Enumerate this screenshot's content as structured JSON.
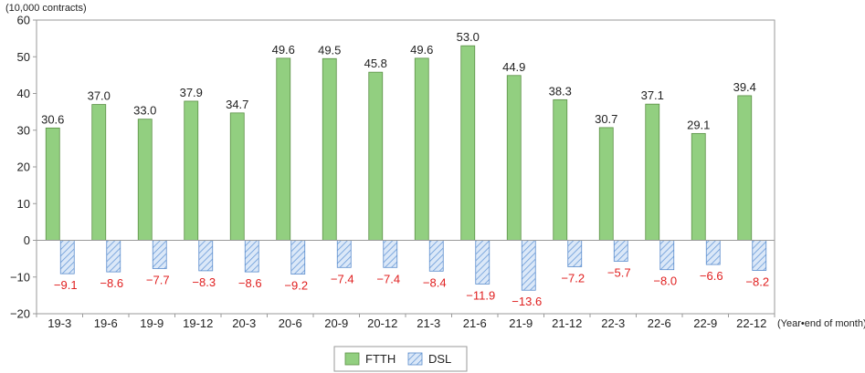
{
  "chart_data": {
    "type": "bar",
    "y_unit_label": "(10,000 contracts)",
    "x_unit_label": "(Year•end of month)",
    "categories": [
      "19-3",
      "19-6",
      "19-9",
      "19-12",
      "20-3",
      "20-6",
      "20-9",
      "20-12",
      "21-3",
      "21-6",
      "21-9",
      "21-12",
      "22-3",
      "22-6",
      "22-9",
      "22-12"
    ],
    "series": [
      {
        "name": "FTTH",
        "color": "#92cf80",
        "values": [
          30.6,
          37.0,
          33.0,
          37.9,
          34.7,
          49.6,
          49.5,
          45.8,
          49.6,
          53.0,
          44.9,
          38.3,
          30.7,
          37.1,
          29.1,
          39.4
        ]
      },
      {
        "name": "DSL",
        "color": "#a9c8ef",
        "pattern": "diagonal-hatch",
        "values": [
          -9.1,
          -8.6,
          -7.7,
          -8.3,
          -8.6,
          -9.2,
          -7.4,
          -7.4,
          -8.4,
          -11.9,
          -13.6,
          -7.2,
          -5.7,
          -8.0,
          -6.6,
          -8.2
        ]
      }
    ],
    "data_labels": {
      "FTTH": [
        "30.6",
        "37.0",
        "33.0",
        "37.9",
        "34.7",
        "49.6",
        "49.5",
        "45.8",
        "49.6",
        "53.0",
        "44.9",
        "38.3",
        "30.7",
        "37.1",
        "29.1",
        "39.4"
      ],
      "DSL": [
        "−9.1",
        "−8.6",
        "−7.7",
        "−8.3",
        "−8.6",
        "−9.2",
        "−7.4",
        "−7.4",
        "−8.4",
        "−11.9",
        "−13.6",
        "−7.2",
        "−5.7",
        "−8.0",
        "−6.6",
        "−8.2"
      ]
    },
    "ylim": [
      -20,
      60
    ],
    "yticks": [
      60,
      50,
      40,
      30,
      20,
      10,
      0,
      -10,
      -20
    ],
    "ytick_labels": [
      "60",
      "50",
      "40",
      "30",
      "20",
      "10",
      "0",
      "−10",
      "−20"
    ],
    "grid": false,
    "legend": {
      "placement": "bottom-center",
      "entries": [
        "FTTH",
        "DSL"
      ]
    },
    "negative_label_color": "#e02020"
  }
}
